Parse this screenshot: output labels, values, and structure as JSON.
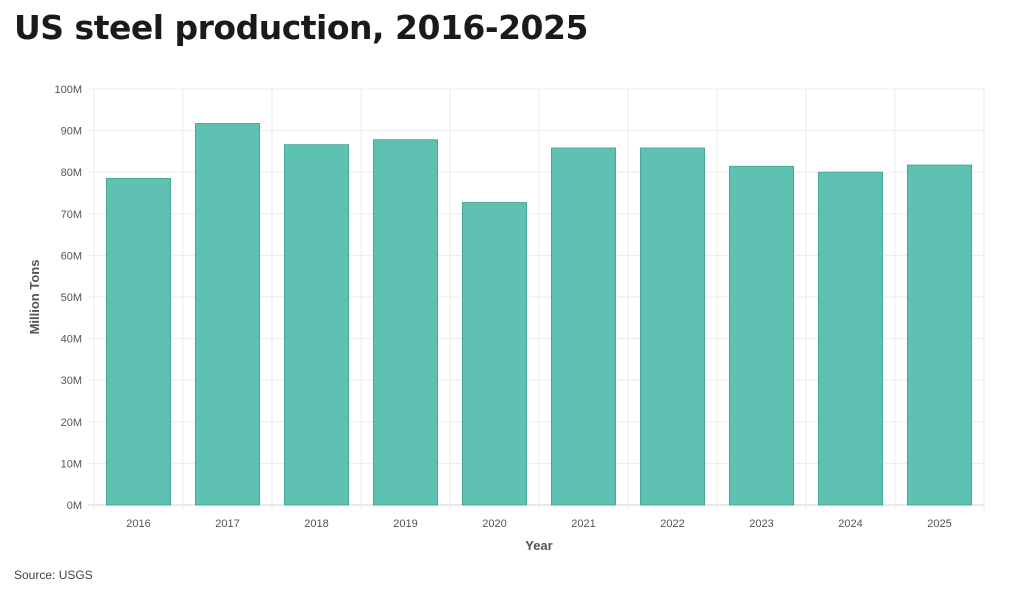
{
  "title": "US steel production, 2016-2025",
  "source": "Source: USGS",
  "chart_data": {
    "type": "bar",
    "title": "US steel production, 2016-2025",
    "xlabel": "Year",
    "ylabel": "Million Tons",
    "categories": [
      "2016",
      "2017",
      "2018",
      "2019",
      "2020",
      "2021",
      "2022",
      "2023",
      "2024",
      "2025"
    ],
    "values": [
      78.5,
      91.7,
      86.6,
      87.8,
      72.7,
      85.8,
      85.8,
      81.4,
      80.0,
      81.7
    ],
    "ylim": [
      0,
      100
    ],
    "yticks": [
      0,
      10,
      20,
      30,
      40,
      50,
      60,
      70,
      80,
      90,
      100
    ],
    "ytick_labels": [
      "0M",
      "10M",
      "20M",
      "30M",
      "40M",
      "50M",
      "60M",
      "70M",
      "80M",
      "90M",
      "100M"
    ],
    "grid": true,
    "legend": "none",
    "bar_color": "#5fc1b1",
    "bar_stroke": "#4aa897"
  }
}
